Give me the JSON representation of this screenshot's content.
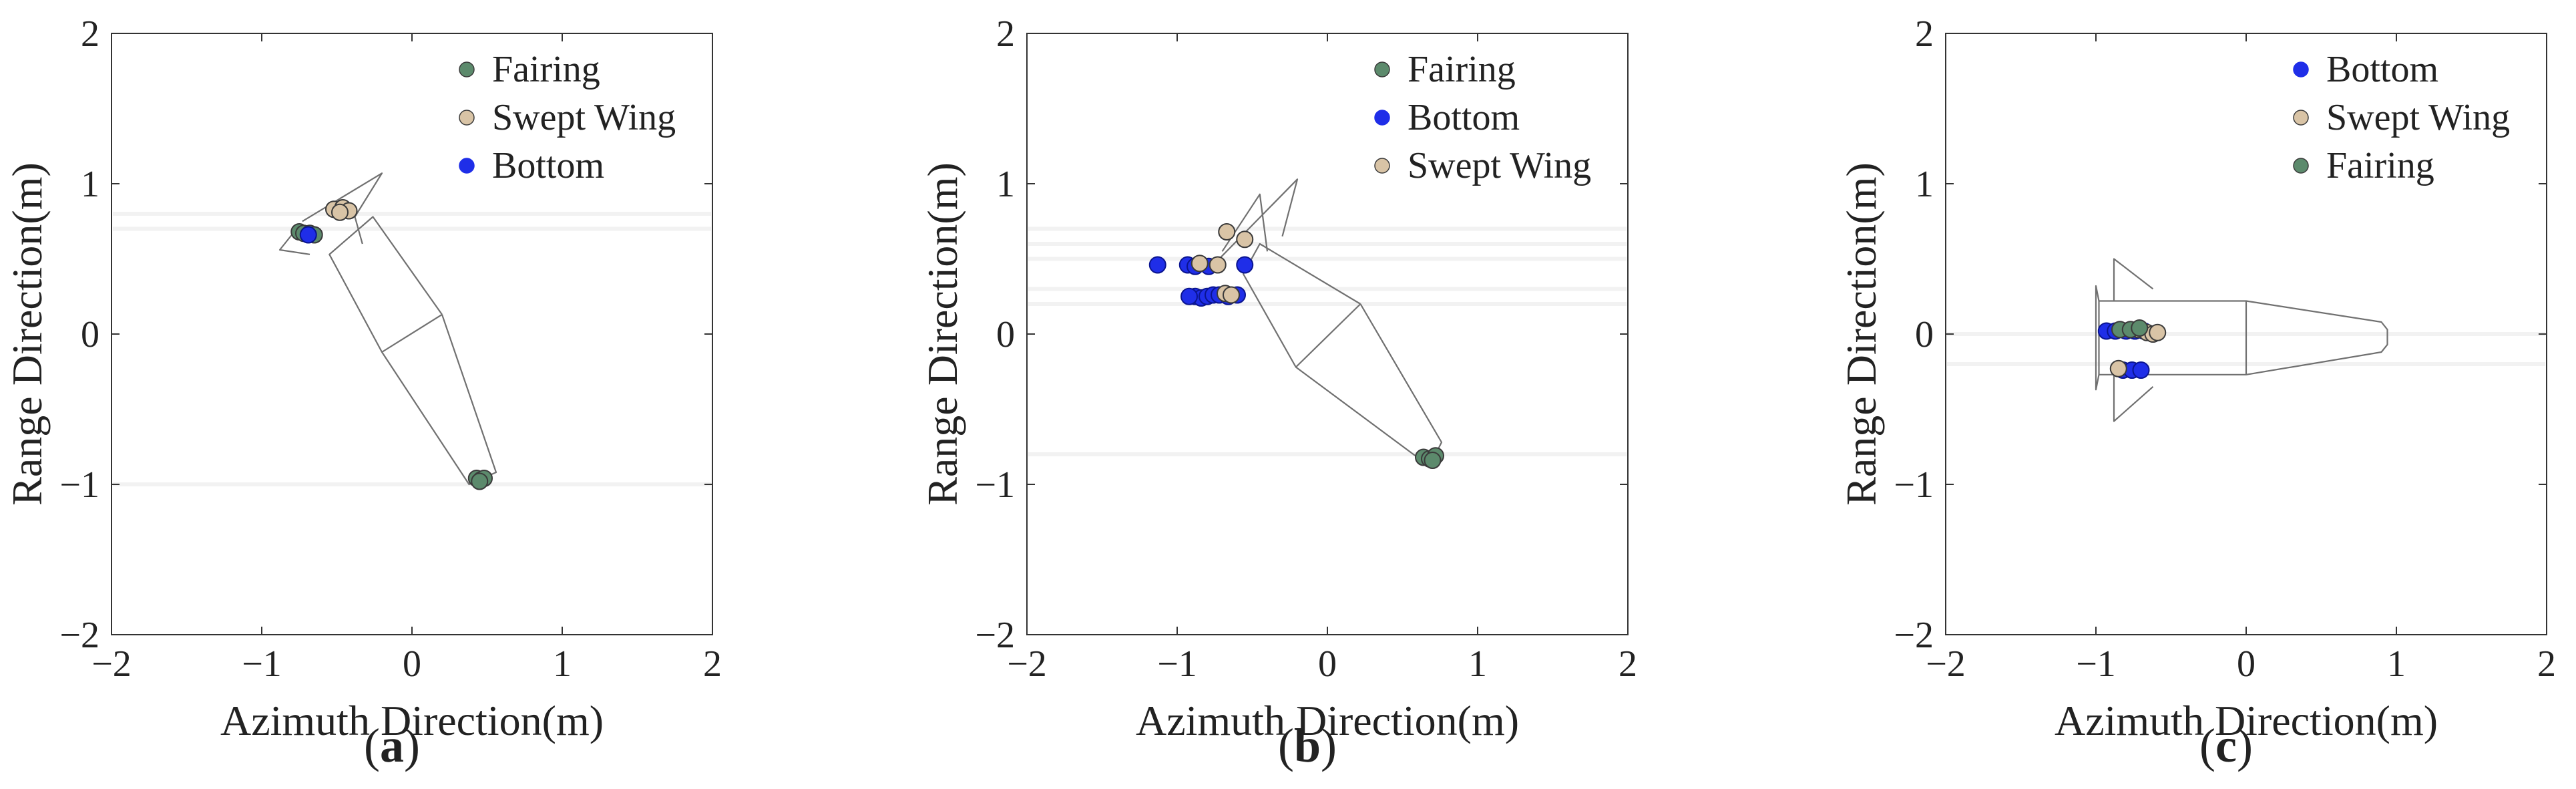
{
  "figure": {
    "subplot_labels": [
      "(a)",
      "(b)",
      "(c)"
    ]
  },
  "colors": {
    "Fairing": "#5c8a6c",
    "Swept Wing": "#d9c4a6",
    "Bottom": "#1f2ee8",
    "axes": "#333333",
    "outline": "#707070"
  },
  "chart_data": [
    {
      "type": "scatter",
      "panel_label": "(a)",
      "xlabel": "Azimuth Direction(m)",
      "ylabel": "Range Direction(m)",
      "xlim": [
        -2,
        2
      ],
      "ylim": [
        -2,
        2
      ],
      "xticks": [
        -2,
        -1,
        0,
        1,
        2
      ],
      "yticks": [
        -2,
        -1,
        0,
        1,
        2
      ],
      "grid": false,
      "legend_position": "top-right",
      "legend": [
        "Fairing",
        "Swept Wing",
        "Bottom"
      ],
      "series": [
        {
          "name": "Fairing",
          "points": [
            [
              -0.75,
              0.68
            ],
            [
              -0.72,
              0.67
            ],
            [
              -0.68,
              0.67
            ],
            [
              -0.65,
              0.66
            ],
            [
              0.43,
              -0.96
            ],
            [
              0.46,
              -0.97
            ],
            [
              0.48,
              -0.96
            ],
            [
              0.45,
              -0.98
            ]
          ]
        },
        {
          "name": "Swept Wing",
          "points": [
            [
              -0.52,
              0.83
            ],
            [
              -0.46,
              0.84
            ],
            [
              -0.42,
              0.82
            ],
            [
              -0.48,
              0.81
            ]
          ]
        },
        {
          "name": "Bottom",
          "points": [
            [
              -0.69,
              0.66
            ]
          ]
        }
      ],
      "target_outline": [
        {
          "name": "body",
          "points": [
            [
              0.2,
              0.13
            ],
            [
              0.56,
              -0.92
            ],
            [
              0.38,
              -1.0
            ],
            [
              -0.2,
              -0.12
            ],
            [
              -0.55,
              0.53
            ],
            [
              -0.26,
              0.78
            ],
            [
              0.2,
              0.13
            ]
          ]
        },
        {
          "name": "mid-section",
          "points": [
            [
              -0.2,
              -0.12
            ],
            [
              0.2,
              0.13
            ]
          ]
        },
        {
          "name": "fin-upper",
          "points": [
            [
              -0.73,
              0.75
            ],
            [
              -0.2,
              1.07
            ],
            [
              -0.38,
              0.78
            ],
            [
              -0.33,
              0.6
            ]
          ]
        },
        {
          "name": "fin-lower",
          "points": [
            [
              -0.8,
              0.66
            ],
            [
              -0.88,
              0.56
            ],
            [
              -0.68,
              0.53
            ]
          ]
        }
      ]
    },
    {
      "type": "scatter",
      "panel_label": "(b)",
      "xlabel": "Azimuth Direction(m)",
      "ylabel": "Range Direction(m)",
      "xlim": [
        -2,
        2
      ],
      "ylim": [
        -2,
        2
      ],
      "xticks": [
        -2,
        -1,
        0,
        1,
        2
      ],
      "yticks": [
        -2,
        -1,
        0,
        1,
        2
      ],
      "grid": false,
      "legend_position": "top-right",
      "legend": [
        "Fairing",
        "Bottom",
        "Swept Wing"
      ],
      "series": [
        {
          "name": "Fairing",
          "points": [
            [
              0.64,
              -0.82
            ],
            [
              0.68,
              -0.83
            ],
            [
              0.72,
              -0.81
            ],
            [
              0.7,
              -0.84
            ]
          ]
        },
        {
          "name": "Bottom",
          "points": [
            [
              -1.13,
              0.46
            ],
            [
              -0.93,
              0.46
            ],
            [
              -0.88,
              0.25
            ],
            [
              -0.84,
              0.24
            ],
            [
              -0.8,
              0.25
            ],
            [
              -0.76,
              0.26
            ],
            [
              -0.72,
              0.26
            ],
            [
              -0.66,
              0.25
            ],
            [
              -0.6,
              0.26
            ],
            [
              -0.55,
              0.46
            ],
            [
              -0.88,
              0.45
            ],
            [
              -0.92,
              0.25
            ],
            [
              -0.79,
              0.45
            ]
          ]
        },
        {
          "name": "Swept Wing",
          "points": [
            [
              -0.85,
              0.47
            ],
            [
              -0.73,
              0.46
            ],
            [
              -0.68,
              0.27
            ],
            [
              -0.64,
              0.26
            ],
            [
              -0.67,
              0.68
            ],
            [
              -0.55,
              0.63
            ]
          ]
        }
      ],
      "target_outline": [
        {
          "name": "body",
          "points": [
            [
              0.22,
              0.2
            ],
            [
              0.76,
              -0.72
            ],
            [
              0.68,
              -0.88
            ],
            [
              -0.21,
              -0.22
            ],
            [
              -0.56,
              0.4
            ],
            [
              -0.45,
              0.6
            ],
            [
              0.22,
              0.2
            ]
          ]
        },
        {
          "name": "mid-section",
          "points": [
            [
              -0.21,
              -0.22
            ],
            [
              0.22,
              0.2
            ]
          ]
        },
        {
          "name": "fin-upper",
          "points": [
            [
              -0.75,
              0.47
            ],
            [
              -0.2,
              1.03
            ],
            [
              -0.3,
              0.65
            ]
          ]
        },
        {
          "name": "fin-mid",
          "points": [
            [
              -0.7,
              0.55
            ],
            [
              -0.45,
              0.93
            ],
            [
              -0.4,
              0.55
            ]
          ]
        }
      ]
    },
    {
      "type": "scatter",
      "panel_label": "(c)",
      "xlabel": "Azimuth Direction(m)",
      "ylabel": "Range Direction(m)",
      "xlim": [
        -2,
        2
      ],
      "ylim": [
        -2,
        2
      ],
      "xticks": [
        -2,
        -1,
        0,
        1,
        2
      ],
      "yticks": [
        -2,
        -1,
        0,
        1,
        2
      ],
      "grid": false,
      "legend_position": "top-right",
      "legend": [
        "Bottom",
        "Swept Wing",
        "Fairing"
      ],
      "series": [
        {
          "name": "Bottom",
          "points": [
            [
              -0.93,
              0.02
            ],
            [
              -0.87,
              0.02
            ],
            [
              -0.8,
              0.02
            ],
            [
              -0.74,
              0.02
            ],
            [
              -0.68,
              0.02
            ],
            [
              -0.82,
              -0.24
            ],
            [
              -0.76,
              -0.24
            ],
            [
              -0.7,
              -0.24
            ]
          ]
        },
        {
          "name": "Swept Wing",
          "points": [
            [
              -0.85,
              -0.23
            ],
            [
              -0.72,
              0.03
            ],
            [
              -0.66,
              0.01
            ],
            [
              -0.62,
              0.0
            ],
            [
              -0.59,
              0.01
            ]
          ]
        },
        {
          "name": "Fairing",
          "points": [
            [
              -0.84,
              0.03
            ],
            [
              -0.77,
              0.03
            ],
            [
              -0.71,
              0.04
            ]
          ]
        }
      ],
      "target_outline": [
        {
          "name": "body",
          "points": [
            [
              -0.98,
              0.22
            ],
            [
              0.0,
              0.22
            ],
            [
              0.9,
              0.08
            ],
            [
              0.94,
              0.03
            ],
            [
              0.94,
              -0.07
            ],
            [
              0.9,
              -0.12
            ],
            [
              0.0,
              -0.27
            ],
            [
              -0.98,
              -0.27
            ],
            [
              -0.98,
              0.22
            ]
          ]
        },
        {
          "name": "mid-section",
          "points": [
            [
              0.0,
              0.22
            ],
            [
              0.0,
              -0.27
            ]
          ]
        },
        {
          "name": "fin-upper",
          "points": [
            [
              -0.88,
              0.22
            ],
            [
              -0.88,
              0.5
            ],
            [
              -0.62,
              0.3
            ]
          ]
        },
        {
          "name": "fin-lower",
          "points": [
            [
              -0.88,
              -0.27
            ],
            [
              -0.88,
              -0.58
            ],
            [
              -0.62,
              -0.35
            ]
          ]
        },
        {
          "name": "tail-left",
          "points": [
            [
              -0.98,
              0.22
            ],
            [
              -1.0,
              0.32
            ],
            [
              -1.0,
              -0.37
            ],
            [
              -0.98,
              -0.27
            ]
          ]
        }
      ]
    }
  ]
}
